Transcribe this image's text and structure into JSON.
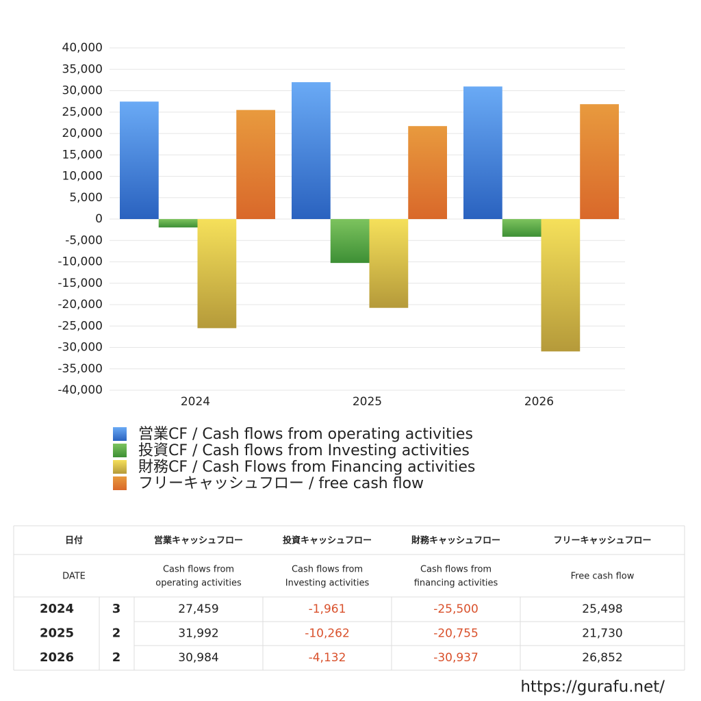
{
  "chart_data": {
    "type": "bar",
    "categories": [
      "2024",
      "2025",
      "2026"
    ],
    "series": [
      {
        "name": "営業CF / Cash flows from operating activities",
        "color": "#4a86e0",
        "gradient": [
          "#6aaaf5",
          "#2a62bf"
        ],
        "values": [
          27459,
          31992,
          30984
        ],
        "value_labels": [
          "27,459",
          "31,992",
          "30,984"
        ]
      },
      {
        "name": "投資CF / Cash flows from Investing activities",
        "color": "#52a447",
        "gradient": [
          "#7dc35e",
          "#3d8f35"
        ],
        "values": [
          -1961,
          -10262,
          -4132
        ],
        "value_labels": [
          "-1,961",
          "-10,262",
          "-4,132"
        ]
      },
      {
        "name": "財務CF / Cash Flows from Financing activities",
        "color": "#e3c94b",
        "gradient": [
          "#f5e05a",
          "#b59a3a"
        ],
        "values": [
          -25500,
          -20755,
          -30937
        ],
        "value_labels": [
          "-25,500",
          "-20,755",
          "-30,937"
        ]
      },
      {
        "name": "フリーキャッシュフロー / free cash flow",
        "color": "#e08236",
        "gradient": [
          "#e89a3e",
          "#d9682a"
        ],
        "values": [
          25498,
          21730,
          26852
        ],
        "value_labels": [
          "25,498",
          "21,730",
          "26,852"
        ]
      }
    ],
    "ylim": [
      -40000,
      40000
    ],
    "yticks": [
      {
        "value": -40000,
        "label": "-40,000"
      },
      {
        "value": -35000,
        "label": "-35,000"
      },
      {
        "value": -30000,
        "label": "-30,000"
      },
      {
        "value": -25000,
        "label": "-25,000"
      },
      {
        "value": -20000,
        "label": "-20,000"
      },
      {
        "value": -15000,
        "label": "-15,000"
      },
      {
        "value": -10000,
        "label": "-10,000"
      },
      {
        "value": -5000,
        "label": "-5,000"
      },
      0,
      {
        "value": 5000,
        "label": "5,000"
      },
      {
        "value": 10000,
        "label": "10,000"
      },
      {
        "value": 15000,
        "label": "15,000"
      },
      {
        "value": 20000,
        "label": "20,000"
      },
      {
        "value": 25000,
        "label": "25,000"
      },
      {
        "value": 30000,
        "label": "30,000"
      },
      {
        "value": 35000,
        "label": "35,000"
      },
      {
        "value": 40000,
        "label": "40,000"
      }
    ],
    "grid": true,
    "legend": "bottom"
  },
  "table": {
    "header": [
      [
        "日付",
        "営業キャッシュフロー",
        "投資キャッシュフロー",
        "財務キャッシュフロー",
        "フリーキャッシュフロー"
      ],
      [
        [
          "DATE"
        ],
        [
          "Cash flows from",
          "operating activities"
        ],
        [
          "Cash flows from",
          "Investing activities"
        ],
        [
          "Cash flows from",
          "financing activities"
        ],
        [
          "Free cash flow"
        ]
      ]
    ],
    "counts": [
      "3",
      "2",
      "2"
    ],
    "negative_color": "#d9512c"
  },
  "footer": "https://gurafu.net/"
}
